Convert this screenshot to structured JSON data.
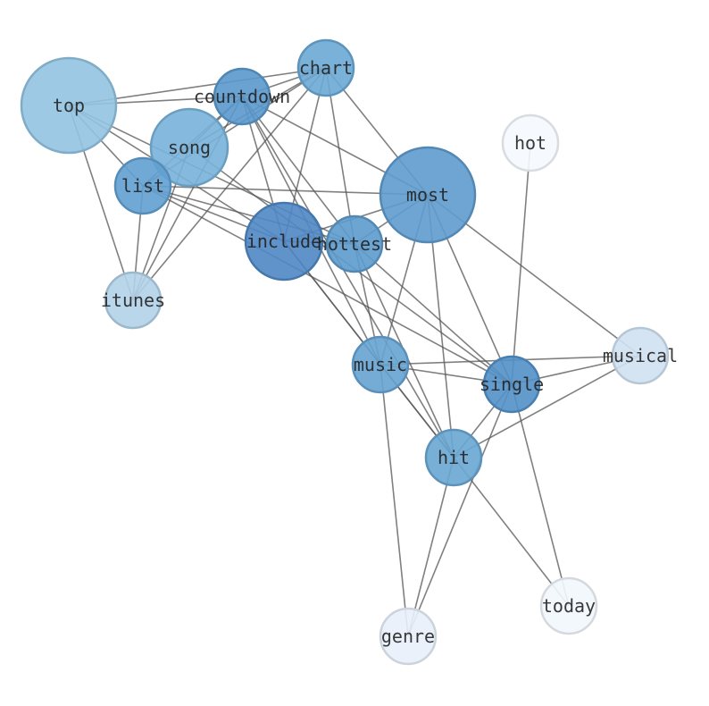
{
  "nodes": [
    {
      "id": "top",
      "label": "top",
      "color": "#92c3e1"
    },
    {
      "id": "countdown",
      "label": "countdown",
      "color": "#5a98cd"
    },
    {
      "id": "chart",
      "label": "chart",
      "color": "#6aa8d4"
    },
    {
      "id": "song",
      "label": "song",
      "color": "#78b3da"
    },
    {
      "id": "list",
      "label": "list",
      "color": "#62a0d1"
    },
    {
      "id": "hot",
      "label": "hot",
      "color": "#f5f9fe"
    },
    {
      "id": "most",
      "label": "most",
      "color": "#5e9bcd"
    },
    {
      "id": "include",
      "label": "include",
      "color": "#4e87c3"
    },
    {
      "id": "hottest",
      "label": "hottest",
      "color": "#5c9acd"
    },
    {
      "id": "itunes",
      "label": "itunes",
      "color": "#b1d2e8"
    },
    {
      "id": "music",
      "label": "music",
      "color": "#66a3d2"
    },
    {
      "id": "musical",
      "label": "musical",
      "color": "#d0e1f2"
    },
    {
      "id": "single",
      "label": "single",
      "color": "#5290c8"
    },
    {
      "id": "hit",
      "label": "hit",
      "color": "#68a6d3"
    },
    {
      "id": "today",
      "label": "today",
      "color": "#f2f7fd"
    },
    {
      "id": "genre",
      "label": "genre",
      "color": "#e8f0f9"
    }
  ],
  "edges": [
    [
      "top",
      "chart"
    ],
    [
      "top",
      "countdown"
    ],
    [
      "top",
      "list"
    ],
    [
      "top",
      "itunes"
    ],
    [
      "top",
      "include"
    ],
    [
      "top",
      "hottest"
    ],
    [
      "countdown",
      "chart"
    ],
    [
      "countdown",
      "song"
    ],
    [
      "countdown",
      "list"
    ],
    [
      "countdown",
      "itunes"
    ],
    [
      "countdown",
      "most"
    ],
    [
      "countdown",
      "include"
    ],
    [
      "countdown",
      "hottest"
    ],
    [
      "countdown",
      "music"
    ],
    [
      "countdown",
      "hit"
    ],
    [
      "chart",
      "list"
    ],
    [
      "chart",
      "song"
    ],
    [
      "chart",
      "itunes"
    ],
    [
      "chart",
      "include"
    ],
    [
      "chart",
      "hottest"
    ],
    [
      "chart",
      "most"
    ],
    [
      "song",
      "itunes"
    ],
    [
      "song",
      "single"
    ],
    [
      "list",
      "itunes"
    ],
    [
      "list",
      "most"
    ],
    [
      "list",
      "include"
    ],
    [
      "list",
      "hottest"
    ],
    [
      "list",
      "single"
    ],
    [
      "include",
      "music"
    ],
    [
      "include",
      "hit"
    ],
    [
      "include",
      "hottest"
    ],
    [
      "include",
      "most"
    ],
    [
      "hottest",
      "most"
    ],
    [
      "hottest",
      "music"
    ],
    [
      "hottest",
      "hit"
    ],
    [
      "hottest",
      "single"
    ],
    [
      "most",
      "music"
    ],
    [
      "most",
      "hit"
    ],
    [
      "most",
      "single"
    ],
    [
      "most",
      "musical"
    ],
    [
      "hot",
      "single"
    ],
    [
      "music",
      "single"
    ],
    [
      "music",
      "musical"
    ],
    [
      "music",
      "hit"
    ],
    [
      "music",
      "genre"
    ],
    [
      "single",
      "musical"
    ],
    [
      "single",
      "hit"
    ],
    [
      "single",
      "genre"
    ],
    [
      "single",
      "today"
    ],
    [
      "hit",
      "musical"
    ],
    [
      "hit",
      "genre"
    ],
    [
      "hit",
      "today"
    ]
  ]
}
